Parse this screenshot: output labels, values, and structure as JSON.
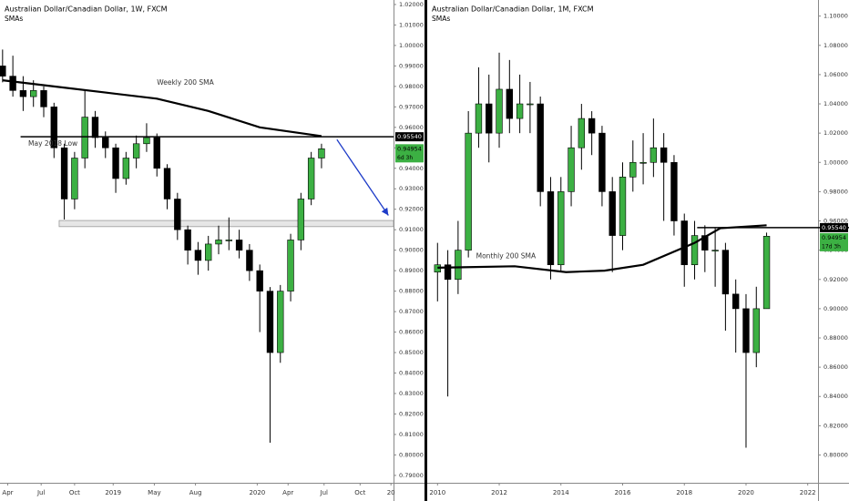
{
  "chart_data": [
    {
      "type": "candlestick",
      "title": "Australian Dollar/Canadian Dollar, 1W, FXCM",
      "subtitle": "SMAs",
      "x": [
        0,
        4,
        8,
        12,
        16,
        20,
        24,
        28,
        32,
        36,
        40,
        44,
        48,
        52,
        56,
        60,
        64,
        68,
        72,
        76,
        80,
        84,
        88,
        92,
        96,
        100,
        104,
        108,
        112,
        116,
        120,
        124
      ],
      "open": [
        0.99,
        0.985,
        0.978,
        0.975,
        0.978,
        0.97,
        0.95,
        0.925,
        0.945,
        0.965,
        0.955,
        0.95,
        0.935,
        0.945,
        0.952,
        0.955,
        0.94,
        0.925,
        0.91,
        0.9,
        0.895,
        0.903,
        0.905,
        0.905,
        0.9,
        0.89,
        0.88,
        0.85,
        0.88,
        0.905,
        0.925,
        0.945
      ],
      "high": [
        0.998,
        0.995,
        0.985,
        0.983,
        0.98,
        0.972,
        0.952,
        0.948,
        0.978,
        0.968,
        0.958,
        0.952,
        0.948,
        0.956,
        0.962,
        0.957,
        0.942,
        0.928,
        0.912,
        0.904,
        0.907,
        0.912,
        0.916,
        0.91,
        0.903,
        0.893,
        0.882,
        0.883,
        0.908,
        0.928,
        0.948,
        0.952
      ],
      "low": [
        0.982,
        0.975,
        0.968,
        0.97,
        0.965,
        0.945,
        0.915,
        0.92,
        0.94,
        0.95,
        0.945,
        0.928,
        0.932,
        0.94,
        0.948,
        0.936,
        0.92,
        0.905,
        0.893,
        0.888,
        0.89,
        0.898,
        0.9,
        0.896,
        0.885,
        0.86,
        0.806,
        0.845,
        0.875,
        0.9,
        0.922,
        0.94
      ],
      "close": [
        0.985,
        0.978,
        0.975,
        0.978,
        0.97,
        0.95,
        0.925,
        0.945,
        0.965,
        0.955,
        0.95,
        0.935,
        0.945,
        0.952,
        0.955,
        0.94,
        0.925,
        0.91,
        0.9,
        0.895,
        0.903,
        0.905,
        0.905,
        0.9,
        0.89,
        0.88,
        0.85,
        0.88,
        0.905,
        0.925,
        0.945,
        0.94954
      ],
      "up_color": "#3cb043",
      "down_color": "#000000",
      "xlim": [
        -1,
        152
      ],
      "xticks": [
        {
          "value": 2,
          "label": "Apr"
        },
        {
          "value": 15,
          "label": "Jul"
        },
        {
          "value": 28,
          "label": "Oct"
        },
        {
          "value": 43,
          "label": "2019"
        },
        {
          "value": 59,
          "label": "May"
        },
        {
          "value": 75,
          "label": "Aug"
        },
        {
          "value": 99,
          "label": "2020"
        },
        {
          "value": 111,
          "label": "Apr"
        },
        {
          "value": 125,
          "label": "Jul"
        },
        {
          "value": 139,
          "label": "Oct"
        },
        {
          "value": 151,
          "label": "20"
        }
      ],
      "ylim": [
        0.7864,
        1.0222
      ],
      "yticks": [
        {
          "value": 0.79,
          "label": "0.79000"
        },
        {
          "value": 0.8,
          "label": "0.80000"
        },
        {
          "value": 0.81,
          "label": "0.81000"
        },
        {
          "value": 0.82,
          "label": "0.82000"
        },
        {
          "value": 0.83,
          "label": "0.83000"
        },
        {
          "value": 0.84,
          "label": "0.84000"
        },
        {
          "value": 0.85,
          "label": "0.85000"
        },
        {
          "value": 0.86,
          "label": "0.86000"
        },
        {
          "value": 0.87,
          "label": "0.87000"
        },
        {
          "value": 0.88,
          "label": "0.88000"
        },
        {
          "value": 0.89,
          "label": "0.89000"
        },
        {
          "value": 0.9,
          "label": "0.90000"
        },
        {
          "value": 0.91,
          "label": "0.91000"
        },
        {
          "value": 0.92,
          "label": "0.92000"
        },
        {
          "value": 0.93,
          "label": "0.93000"
        },
        {
          "value": 0.94,
          "label": "0.94000"
        },
        {
          "value": 0.95,
          "label": "0.95000"
        },
        {
          "value": 0.96,
          "label": "0.96000"
        },
        {
          "value": 0.97,
          "label": "0.97000"
        },
        {
          "value": 0.98,
          "label": "0.98000"
        },
        {
          "value": 0.99,
          "label": "0.99000"
        },
        {
          "value": 1.0,
          "label": "1.00000"
        },
        {
          "value": 1.01,
          "label": "1.01000"
        },
        {
          "value": 1.02,
          "label": "1.02000"
        }
      ],
      "sma": {
        "name": "Weekly 200 SMA",
        "color": "#000000",
        "x": [
          0,
          20,
          40,
          60,
          80,
          100,
          124
        ],
        "values": [
          0.983,
          0.98,
          0.977,
          0.974,
          0.968,
          0.96,
          0.9557
        ],
        "label_x": 60,
        "label_y": 0.979
      },
      "level": {
        "value": 0.9554,
        "label": "0.95540",
        "from": 7
      },
      "last_price": {
        "value": 0.94954,
        "label": "0.94954",
        "color": "#3cb043"
      },
      "countdown": "6d 3h",
      "annotations": [
        {
          "text": "May 2018 Low",
          "x": 10,
          "y": 0.952
        }
      ],
      "zone": {
        "from": 22,
        "ylim": [
          0.9115,
          0.9145
        ],
        "color": "#e6e6e6"
      },
      "projection": {
        "x": [
          130,
          150
        ],
        "y": [
          0.954,
          0.917
        ],
        "color": "#1e3cc8"
      }
    },
    {
      "type": "candlestick",
      "title": "Australian Dollar/Canadian Dollar, 1M, FXCM",
      "subtitle": "SMAs",
      "x": [
        0,
        4,
        8,
        12,
        16,
        20,
        24,
        28,
        32,
        36,
        40,
        44,
        48,
        52,
        56,
        60,
        64,
        68,
        72,
        76,
        80,
        84,
        88,
        92,
        96,
        100,
        104,
        108,
        112,
        116,
        120,
        124,
        128
      ],
      "open": [
        0.925,
        0.93,
        0.92,
        0.94,
        1.02,
        1.04,
        1.02,
        1.05,
        1.03,
        1.04,
        1.04,
        0.98,
        0.93,
        0.98,
        1.01,
        1.03,
        1.02,
        0.98,
        0.95,
        0.99,
        1.0,
        1.0,
        1.01,
        1.0,
        0.96,
        0.93,
        0.95,
        0.94,
        0.94,
        0.91,
        0.9,
        0.87,
        0.9
      ],
      "high": [
        0.945,
        0.94,
        0.96,
        1.035,
        1.065,
        1.06,
        1.075,
        1.07,
        1.06,
        1.055,
        1.045,
        0.99,
        0.99,
        1.025,
        1.04,
        1.035,
        1.025,
        0.99,
        1.0,
        1.015,
        1.02,
        1.03,
        1.02,
        1.005,
        0.965,
        0.96,
        0.957,
        0.955,
        0.945,
        0.92,
        0.91,
        0.915,
        0.952
      ],
      "low": [
        0.905,
        0.84,
        0.91,
        0.935,
        1.01,
        1.0,
        1.01,
        1.02,
        1.02,
        1.02,
        0.97,
        0.92,
        0.925,
        0.97,
        0.995,
        1.005,
        0.97,
        0.925,
        0.94,
        0.98,
        0.985,
        0.99,
        0.96,
        0.95,
        0.915,
        0.92,
        0.925,
        0.915,
        0.885,
        0.87,
        0.805,
        0.86,
        0.9
      ],
      "close": [
        0.93,
        0.92,
        0.94,
        1.02,
        1.04,
        1.02,
        1.05,
        1.03,
        1.04,
        1.04,
        0.98,
        0.93,
        0.98,
        1.01,
        1.03,
        1.02,
        0.98,
        0.95,
        0.99,
        1.0,
        1.0,
        1.01,
        1.0,
        0.96,
        0.93,
        0.95,
        0.94,
        0.94,
        0.91,
        0.9,
        0.87,
        0.9,
        0.94954
      ],
      "up_color": "#3cb043",
      "down_color": "#000000",
      "xlim": [
        -4,
        148
      ],
      "xticks": [
        {
          "value": 0,
          "label": "2010"
        },
        {
          "value": 24,
          "label": "2012"
        },
        {
          "value": 48,
          "label": "2014"
        },
        {
          "value": 72,
          "label": "2016"
        },
        {
          "value": 96,
          "label": "2018"
        },
        {
          "value": 120,
          "label": "2020"
        },
        {
          "value": 144,
          "label": "2022"
        }
      ],
      "ylim": [
        0.781,
        1.111
      ],
      "yticks": [
        {
          "value": 0.8,
          "label": "0.80000"
        },
        {
          "value": 0.82,
          "label": "0.82000"
        },
        {
          "value": 0.84,
          "label": "0.84000"
        },
        {
          "value": 0.86,
          "label": "0.86000"
        },
        {
          "value": 0.88,
          "label": "0.88000"
        },
        {
          "value": 0.9,
          "label": "0.90000"
        },
        {
          "value": 0.92,
          "label": "0.92000"
        },
        {
          "value": 0.94,
          "label": "0.94000"
        },
        {
          "value": 0.96,
          "label": "0.96000"
        },
        {
          "value": 0.98,
          "label": "0.98000"
        },
        {
          "value": 1.0,
          "label": "1.00000"
        },
        {
          "value": 1.02,
          "label": "1.02000"
        },
        {
          "value": 1.04,
          "label": "1.04000"
        },
        {
          "value": 1.06,
          "label": "1.06000"
        },
        {
          "value": 1.08,
          "label": "1.08000"
        },
        {
          "value": 1.1,
          "label": "1.10000"
        }
      ],
      "sma": {
        "name": "Monthly 200 SMA",
        "color": "#000000",
        "x": [
          0,
          30,
          50,
          65,
          80,
          100,
          110,
          128
        ],
        "values": [
          0.928,
          0.929,
          0.925,
          0.926,
          0.93,
          0.945,
          0.955,
          0.957
        ],
        "label_x": 15,
        "label_y": 0.932
      },
      "level": {
        "value": 0.9554,
        "label": "0.95540",
        "from": 101
      },
      "last_price": {
        "value": 0.94954,
        "label": "0.94954",
        "color": "#3cb043"
      },
      "countdown": "17d 3h",
      "annotations": []
    }
  ]
}
